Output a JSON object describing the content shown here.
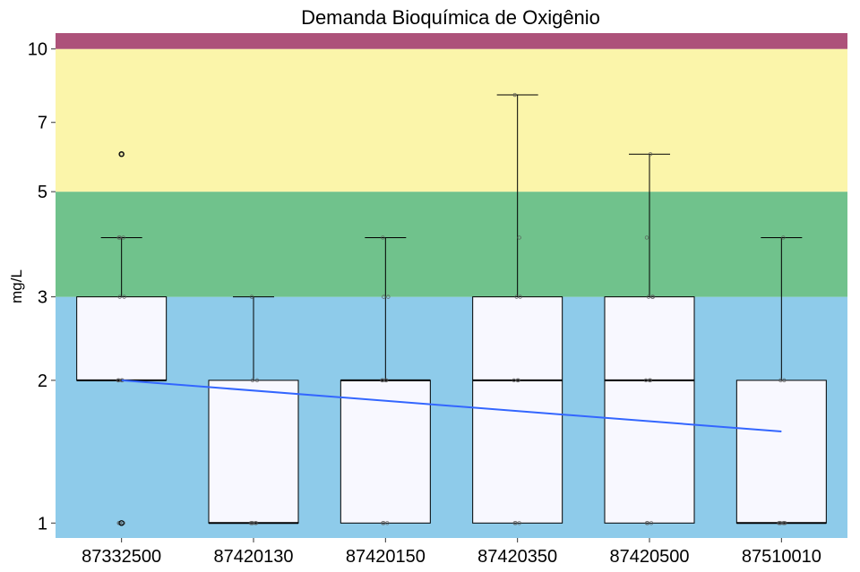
{
  "chart_data": {
    "type": "box",
    "title": "Demanda Bioquímica de Oxigênio",
    "xlabel": "",
    "ylabel": "mg/L",
    "y_scale": "log",
    "ylim": [
      0.93,
      10.8
    ],
    "y_ticks": [
      1,
      2,
      3,
      5,
      7,
      10
    ],
    "grid": false,
    "legend": "none",
    "categories": [
      "87332500",
      "87420130",
      "87420150",
      "87420350",
      "87420500",
      "87510010"
    ],
    "bands": [
      {
        "from": 0.93,
        "to": 3,
        "color": "#8ECBEA"
      },
      {
        "from": 3,
        "to": 5,
        "color": "#70C28C"
      },
      {
        "from": 5,
        "to": 10,
        "color": "#FBF5AA"
      },
      {
        "from": 10,
        "to": 10.8,
        "color": "#AD527A"
      }
    ],
    "boxes": [
      {
        "q1": 2,
        "median": 2,
        "q3": 3,
        "whisker_low": 2,
        "whisker_high": 4
      },
      {
        "q1": 1,
        "median": 1,
        "q3": 2,
        "whisker_low": 1,
        "whisker_high": 3
      },
      {
        "q1": 1,
        "median": 2,
        "q3": 2,
        "whisker_low": 1,
        "whisker_high": 4
      },
      {
        "q1": 1,
        "median": 2,
        "q3": 3,
        "whisker_low": 1,
        "whisker_high": 8
      },
      {
        "q1": 1,
        "median": 2,
        "q3": 3,
        "whisker_low": 1,
        "whisker_high": 6
      },
      {
        "q1": 1,
        "median": 1,
        "q3": 2,
        "whisker_low": 1,
        "whisker_high": 4
      }
    ],
    "outliers": [
      {
        "category": "87332500",
        "value": 6
      },
      {
        "category": "87332500",
        "value": 1
      }
    ],
    "points": [
      {
        "category": "87332500",
        "values": [
          1,
          1,
          1,
          2,
          2,
          2,
          2,
          3,
          3,
          4,
          4,
          4,
          6
        ]
      },
      {
        "category": "87420130",
        "values": [
          1,
          1,
          1,
          1,
          1,
          2,
          2,
          3
        ]
      },
      {
        "category": "87420150",
        "values": [
          1,
          1,
          1,
          2,
          2,
          2,
          2,
          3,
          3,
          4
        ]
      },
      {
        "category": "87420350",
        "values": [
          1,
          1,
          1,
          2,
          2,
          2,
          3,
          3,
          4,
          8
        ]
      },
      {
        "category": "87420500",
        "values": [
          1,
          1,
          1,
          2,
          2,
          2,
          3,
          3,
          3,
          4,
          6
        ]
      },
      {
        "category": "87510010",
        "values": [
          1,
          1,
          1,
          1,
          1,
          1,
          2,
          2,
          4
        ]
      }
    ],
    "trend_line": {
      "color": "#3366FF",
      "from": {
        "category": "87332500",
        "value": 2.0
      },
      "to": {
        "category": "87510010",
        "value": 1.56
      }
    }
  }
}
